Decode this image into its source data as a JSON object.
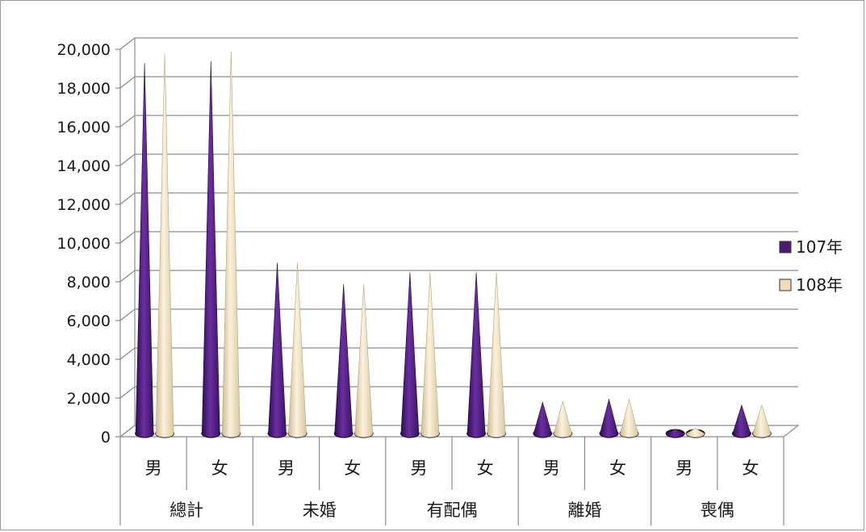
{
  "chart_data": {
    "type": "bar",
    "style": "3d-cone",
    "groups": [
      "總計",
      "未婚",
      "有配偶",
      "離婚",
      "喪偶"
    ],
    "categories": [
      "男",
      "女",
      "男",
      "女",
      "男",
      "女",
      "男",
      "女",
      "男",
      "女"
    ],
    "series": [
      {
        "name": "107年",
        "color": "#4b1a78",
        "values": [
          19200,
          19300,
          8900,
          7800,
          8400,
          8400,
          1700,
          1850,
          300,
          1550
        ]
      },
      {
        "name": "108年",
        "color": "#ecdcb8",
        "values": [
          19700,
          19800,
          8900,
          7800,
          8400,
          8400,
          1750,
          1850,
          350,
          1550
        ]
      }
    ],
    "ylim": [
      0,
      20000
    ],
    "yticks": [
      "0",
      "2,000",
      "4,000",
      "6,000",
      "8,000",
      "10,000",
      "12,000",
      "14,000",
      "16,000",
      "18,000",
      "20,000"
    ],
    "grid": true,
    "legend": "right"
  }
}
